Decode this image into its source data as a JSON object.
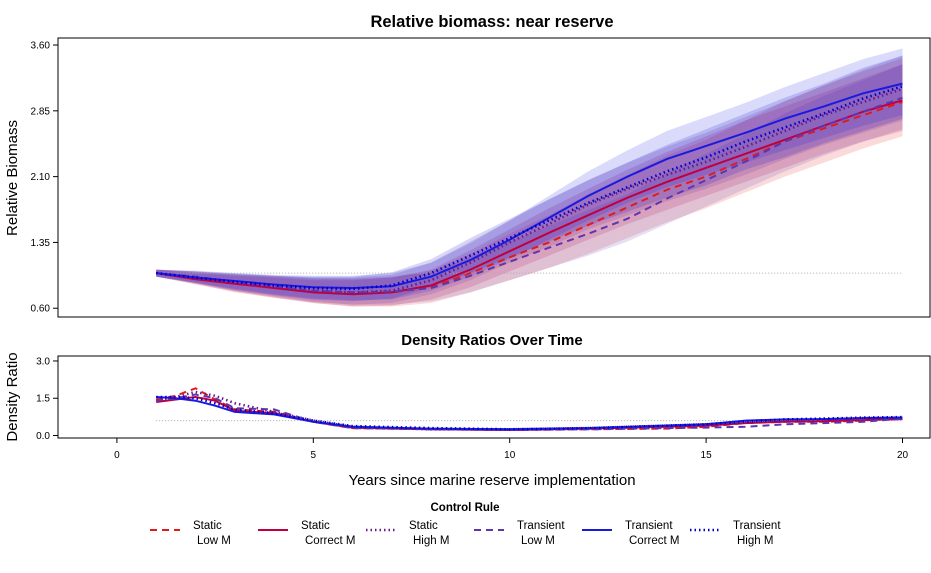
{
  "chart_data": [
    {
      "type": "line",
      "title": "Relative biomass: near reserve",
      "xlabel": "",
      "ylabel": "Relative Biomass",
      "xlim": [
        -1.5,
        20.7
      ],
      "ylim": [
        0.5,
        3.68
      ],
      "yticks": [
        "0.60",
        "1.35",
        "2.10",
        "2.85",
        "3.60"
      ],
      "reference_line": 1.0,
      "grid": false,
      "shaded_bands": "uncertainty envelope around each series",
      "x": [
        1,
        2,
        3,
        4,
        5,
        6,
        7,
        8,
        9,
        10,
        11,
        12,
        13,
        14,
        15,
        16,
        17,
        18,
        19,
        20
      ],
      "series": [
        {
          "name": "Static Low M",
          "color": "#e31a1c",
          "dash": "dashed",
          "values": [
            1.0,
            0.95,
            0.88,
            0.84,
            0.8,
            0.77,
            0.78,
            0.84,
            1.0,
            1.18,
            1.35,
            1.55,
            1.75,
            1.95,
            2.1,
            2.3,
            2.5,
            2.65,
            2.8,
            2.95
          ],
          "band_lower": [
            0.96,
            0.88,
            0.78,
            0.72,
            0.66,
            0.62,
            0.62,
            0.66,
            0.78,
            0.92,
            1.06,
            1.22,
            1.4,
            1.58,
            1.74,
            1.92,
            2.1,
            2.26,
            2.42,
            2.56
          ],
          "band_upper": [
            1.04,
            1.02,
            0.98,
            0.96,
            0.94,
            0.93,
            0.95,
            1.03,
            1.22,
            1.45,
            1.66,
            1.9,
            2.12,
            2.34,
            2.52,
            2.74,
            2.96,
            3.14,
            3.3,
            3.45
          ]
        },
        {
          "name": "Static Correct M",
          "color": "#c0003c",
          "dash": "solid",
          "values": [
            1.0,
            0.93,
            0.88,
            0.83,
            0.78,
            0.76,
            0.78,
            0.86,
            1.04,
            1.25,
            1.46,
            1.66,
            1.86,
            2.04,
            2.2,
            2.36,
            2.52,
            2.68,
            2.84,
            2.97
          ],
          "band_lower": [
            0.96,
            0.87,
            0.79,
            0.72,
            0.66,
            0.62,
            0.63,
            0.7,
            0.84,
            1.02,
            1.2,
            1.38,
            1.56,
            1.72,
            1.88,
            2.04,
            2.2,
            2.36,
            2.5,
            2.62
          ],
          "band_upper": [
            1.04,
            1.0,
            0.97,
            0.95,
            0.92,
            0.92,
            0.95,
            1.04,
            1.26,
            1.5,
            1.74,
            1.96,
            2.18,
            2.38,
            2.56,
            2.74,
            2.9,
            3.06,
            3.22,
            3.38
          ]
        },
        {
          "name": "Static High M",
          "color": "#6a1b8a",
          "dash": "dotted",
          "values": [
            1.0,
            0.94,
            0.9,
            0.85,
            0.8,
            0.78,
            0.8,
            0.92,
            1.12,
            1.35,
            1.56,
            1.78,
            1.96,
            2.12,
            2.27,
            2.44,
            2.62,
            2.8,
            2.95,
            3.1
          ],
          "band_lower": [
            0.96,
            0.88,
            0.8,
            0.73,
            0.67,
            0.64,
            0.66,
            0.76,
            0.92,
            1.12,
            1.3,
            1.5,
            1.66,
            1.82,
            1.96,
            2.12,
            2.3,
            2.46,
            2.6,
            2.74
          ],
          "band_upper": [
            1.04,
            1.01,
            0.99,
            0.97,
            0.95,
            0.95,
            0.98,
            1.12,
            1.36,
            1.6,
            1.84,
            2.06,
            2.26,
            2.44,
            2.6,
            2.78,
            2.96,
            3.14,
            3.32,
            3.48
          ]
        },
        {
          "name": "Transient Low M",
          "color": "#5e35b1",
          "dash": "dashed",
          "values": [
            1.0,
            0.96,
            0.9,
            0.85,
            0.8,
            0.78,
            0.79,
            0.83,
            0.97,
            1.13,
            1.29,
            1.45,
            1.62,
            1.85,
            2.06,
            2.27,
            2.5,
            2.68,
            2.84,
            3.0
          ],
          "band_lower": [
            0.96,
            0.89,
            0.8,
            0.74,
            0.68,
            0.64,
            0.64,
            0.68,
            0.78,
            0.92,
            1.06,
            1.2,
            1.36,
            1.56,
            1.76,
            1.96,
            2.16,
            2.34,
            2.5,
            2.64
          ],
          "band_upper": [
            1.04,
            1.03,
            1.0,
            0.97,
            0.94,
            0.94,
            0.96,
            1.01,
            1.18,
            1.36,
            1.54,
            1.72,
            1.9,
            2.14,
            2.36,
            2.58,
            2.82,
            3.02,
            3.2,
            3.38
          ]
        },
        {
          "name": "Transient Correct M",
          "color": "#1a1adf",
          "dash": "solid",
          "values": [
            1.0,
            0.95,
            0.91,
            0.87,
            0.84,
            0.83,
            0.85,
            0.96,
            1.15,
            1.38,
            1.63,
            1.88,
            2.1,
            2.3,
            2.45,
            2.6,
            2.76,
            2.9,
            3.05,
            3.16
          ],
          "band_lower": [
            0.96,
            0.89,
            0.82,
            0.76,
            0.71,
            0.69,
            0.7,
            0.8,
            0.96,
            1.16,
            1.38,
            1.6,
            1.8,
            1.98,
            2.12,
            2.26,
            2.4,
            2.54,
            2.68,
            2.8
          ],
          "band_upper": [
            1.04,
            1.02,
            1.0,
            0.98,
            0.97,
            0.97,
            1.0,
            1.12,
            1.34,
            1.6,
            1.88,
            2.16,
            2.4,
            2.62,
            2.78,
            2.94,
            3.12,
            3.28,
            3.44,
            3.56
          ]
        },
        {
          "name": "Transient High M",
          "color": "#0000cd",
          "dash": "dotted",
          "values": [
            1.0,
            0.95,
            0.9,
            0.86,
            0.83,
            0.82,
            0.86,
            1.0,
            1.2,
            1.4,
            1.6,
            1.8,
            1.98,
            2.16,
            2.32,
            2.5,
            2.66,
            2.82,
            2.99,
            3.13
          ],
          "band_lower": [
            0.96,
            0.89,
            0.81,
            0.75,
            0.7,
            0.68,
            0.71,
            0.84,
            1.0,
            1.18,
            1.36,
            1.54,
            1.7,
            1.86,
            2.0,
            2.18,
            2.32,
            2.48,
            2.62,
            2.76
          ],
          "band_upper": [
            1.04,
            1.02,
            0.99,
            0.97,
            0.96,
            0.96,
            1.01,
            1.16,
            1.4,
            1.62,
            1.84,
            2.06,
            2.26,
            2.46,
            2.64,
            2.82,
            3.0,
            3.16,
            3.34,
            3.48
          ]
        }
      ]
    },
    {
      "type": "line",
      "title": "Density Ratios Over Time",
      "xlabel": "Years since marine reserve implementation",
      "ylabel": "Density Ratio",
      "xlim": [
        -1.5,
        20.7
      ],
      "ylim": [
        -0.1,
        3.2
      ],
      "xticks": [
        "0",
        "5",
        "10",
        "15",
        "20"
      ],
      "yticks": [
        "0.0",
        "1.5",
        "3.0"
      ],
      "reference_line": 0.6,
      "grid": false,
      "x": [
        1,
        1.5,
        2,
        2.5,
        3,
        4,
        5,
        6,
        8,
        10,
        12,
        14,
        15,
        16,
        17,
        18,
        19,
        20
      ],
      "series": [
        {
          "name": "Static Low M",
          "color": "#e31a1c",
          "dash": "dashed",
          "values": [
            1.45,
            1.6,
            1.9,
            1.45,
            1.05,
            0.95,
            0.55,
            0.3,
            0.25,
            0.22,
            0.25,
            0.28,
            0.35,
            0.5,
            0.55,
            0.55,
            0.6,
            0.72
          ]
        },
        {
          "name": "Static Correct M",
          "color": "#c0003c",
          "dash": "solid",
          "values": [
            1.35,
            1.45,
            1.55,
            1.4,
            1.0,
            0.9,
            0.55,
            0.32,
            0.25,
            0.22,
            0.28,
            0.35,
            0.4,
            0.5,
            0.55,
            0.58,
            0.62,
            0.66
          ]
        },
        {
          "name": "Static High M",
          "color": "#6a1b8a",
          "dash": "dotted",
          "values": [
            1.4,
            1.55,
            1.75,
            1.6,
            1.3,
            0.95,
            0.6,
            0.35,
            0.25,
            0.25,
            0.3,
            0.4,
            0.45,
            0.55,
            0.6,
            0.65,
            0.7,
            0.72
          ]
        },
        {
          "name": "Transient Low M",
          "color": "#5e35b1",
          "dash": "dashed",
          "values": [
            1.4,
            1.5,
            1.65,
            1.5,
            1.1,
            1.05,
            0.55,
            0.3,
            0.25,
            0.22,
            0.25,
            0.3,
            0.32,
            0.35,
            0.45,
            0.5,
            0.55,
            0.68
          ]
        },
        {
          "name": "Transient Correct M",
          "color": "#1a1adf",
          "dash": "solid",
          "values": [
            1.55,
            1.5,
            1.4,
            1.2,
            0.95,
            0.85,
            0.55,
            0.35,
            0.28,
            0.25,
            0.3,
            0.4,
            0.45,
            0.6,
            0.65,
            0.66,
            0.7,
            0.72
          ]
        },
        {
          "name": "Transient High M",
          "color": "#0000cd",
          "dash": "dotted",
          "values": [
            1.55,
            1.55,
            1.5,
            1.3,
            1.05,
            0.9,
            0.6,
            0.38,
            0.3,
            0.25,
            0.3,
            0.4,
            0.45,
            0.55,
            0.65,
            0.68,
            0.72,
            0.74
          ]
        }
      ]
    }
  ],
  "legend": {
    "title": "Control Rule",
    "placement": "bottom",
    "items": [
      {
        "line1": "Static",
        "line2": "Low M",
        "color": "#e31a1c",
        "dash": "dashed"
      },
      {
        "line1": "Static",
        "line2": "Correct M",
        "color": "#c0003c",
        "dash": "solid"
      },
      {
        "line1": "Static",
        "line2": "High M",
        "color": "#6a1b8a",
        "dash": "dotted"
      },
      {
        "line1": "Transient",
        "line2": "Low M",
        "color": "#5e35b1",
        "dash": "dashed"
      },
      {
        "line1": "Transient",
        "line2": "Correct M",
        "color": "#1a1adf",
        "dash": "solid"
      },
      {
        "line1": "Transient",
        "line2": "High M",
        "color": "#0000cd",
        "dash": "dotted"
      }
    ]
  }
}
